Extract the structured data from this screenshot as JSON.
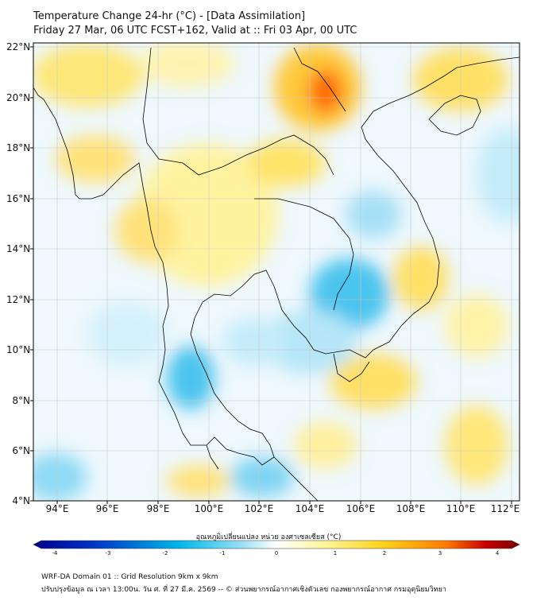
{
  "title_line1": "Temperature Change 24-hr (°C) - [Data Assimilation]",
  "title_line2": "Friday 27 Mar, 06 UTC FCST+162, Valid at :: Fri 03 Apr, 00 UTC",
  "lat_labels": [
    "22°N",
    "20°N",
    "18°N",
    "16°N",
    "14°N",
    "12°N",
    "10°N",
    "8°N",
    "6°N",
    "4°N"
  ],
  "lon_labels": [
    "94°E",
    "96°E",
    "98°E",
    "100°E",
    "102°E",
    "104°E",
    "106°E",
    "108°E",
    "110°E",
    "112°E"
  ],
  "colorbar": {
    "title": "อุณหภูมิเปลี่ยนแปลง หน่วย องศาเซลเซียส (°C)",
    "ticks": [
      "-4",
      "-3",
      "-2",
      "-1",
      "0",
      "1",
      "2",
      "3",
      "4"
    ],
    "colors": [
      "#00008b",
      "#0037c8",
      "#00b8e8",
      "#8fdcf5",
      "#ffffff",
      "#fff59a",
      "#ffd21a",
      "#ff7a00",
      "#c80000",
      "#7a0000"
    ]
  },
  "footer_line1": "WRF-DA Domain 01 :: Grid Resolution 9km x 9km",
  "footer_line2": "ปรับปรุงข้อมูล ณ เวลา 13:00น. วัน ศ. ที่ 27 มี.ค. 2569 -- © ส่วนพยากรณ์อากาศเชิงตัวเลข กองพยากรณ์อากาศ กรมอุตุนิยมวิทยา"
}
